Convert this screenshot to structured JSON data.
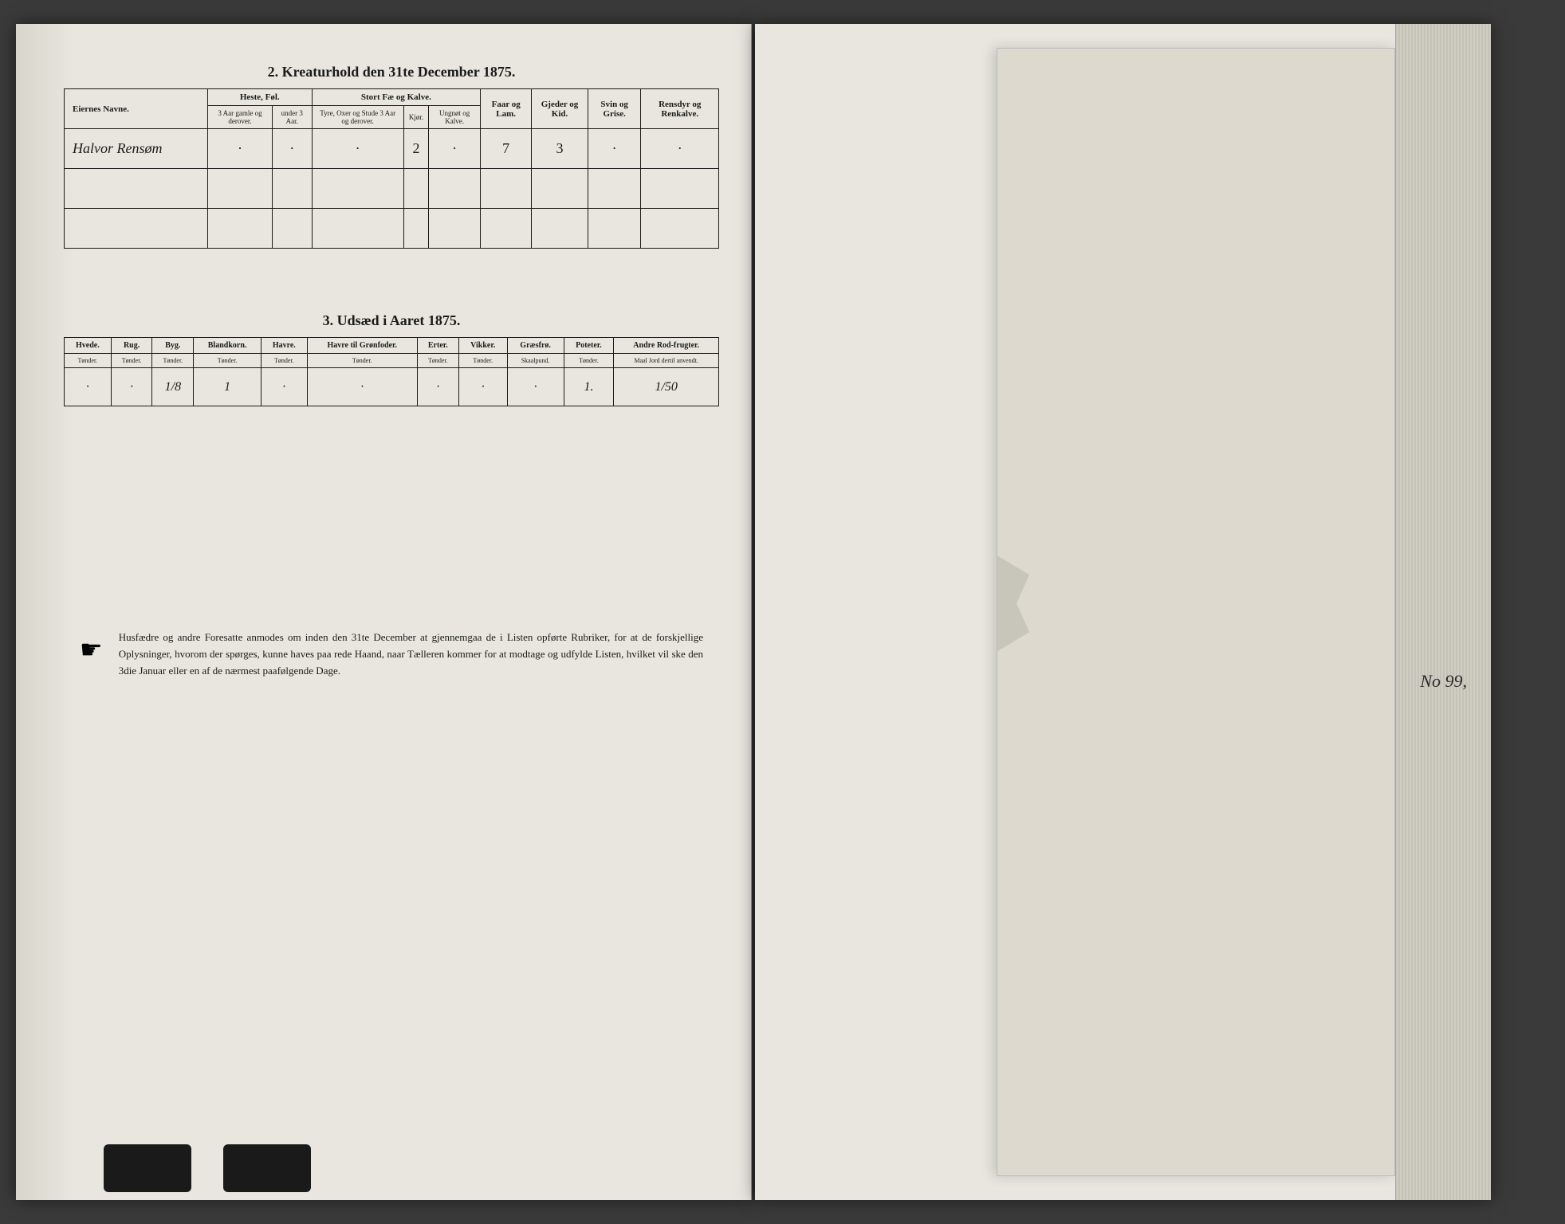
{
  "colors": {
    "page_bg": "#e8e6de",
    "ink": "#1a1a1a",
    "book_bg": "#3a3a3a",
    "body_bg": "#4a4a4a",
    "fold_bg": "#ddd9cf",
    "edge_stack": "#d0cdc2"
  },
  "section2": {
    "title": "2.  Kreaturhold den 31te December 1875.",
    "header_groups": {
      "eier": "Eiernes Navne.",
      "heste": "Heste, Føl.",
      "storfe": "Stort Fæ og Kalve.",
      "faar": "Faar og Lam.",
      "gjeder": "Gjeder og Kid.",
      "svin": "Svin og Grise.",
      "rensdyr": "Rensdyr og Renkalve."
    },
    "subheaders": {
      "heste_a": "3 Aar gamle og derover.",
      "heste_b": "under 3 Aar.",
      "storfe_a": "Tyre, Oxer og Stude 3 Aar og derover.",
      "storfe_b": "Kjør.",
      "storfe_c": "Ungnøt og Kalve."
    },
    "row": {
      "name": "Halvor Rensøm",
      "heste_a": "·",
      "heste_b": "·",
      "storfe_a": "·",
      "storfe_b": "2",
      "storfe_c": "·",
      "faar": "7",
      "gjeder": "3",
      "svin": "·",
      "rensdyr": "·"
    }
  },
  "section3": {
    "title": "3.  Udsæd i Aaret 1875.",
    "columns": [
      {
        "name": "Hvede.",
        "unit": "Tønder."
      },
      {
        "name": "Rug.",
        "unit": "Tønder."
      },
      {
        "name": "Byg.",
        "unit": "Tønder."
      },
      {
        "name": "Blandkorn.",
        "unit": "Tønder."
      },
      {
        "name": "Havre.",
        "unit": "Tønder."
      },
      {
        "name": "Havre til Grønfoder.",
        "unit": "Tønder."
      },
      {
        "name": "Erter.",
        "unit": "Tønder."
      },
      {
        "name": "Vikker.",
        "unit": "Tønder."
      },
      {
        "name": "Græsfrø.",
        "unit": "Skaalpund."
      },
      {
        "name": "Poteter.",
        "unit": "Tønder."
      },
      {
        "name": "Andre Rod-frugter.",
        "unit": "Maal Jord dertil anvendt."
      }
    ],
    "values": [
      "·",
      "·",
      "1/8",
      "1",
      "·",
      "·",
      "·",
      "·",
      "·",
      "1.",
      "1/50"
    ]
  },
  "footer": {
    "text": "Husfædre og andre Foresatte anmodes om inden den 31te December at gjennemgaa de i Listen opførte Rubriker, for at de forskjellige Oplysninger, hvorom der spørges, kunne haves paa rede Haand, naar Tælleren kommer for at modtage og udfylde Listen, hvilket vil ske den 3die Januar eller en af de nærmest paafølgende Dage."
  },
  "margin_note": "No 99,"
}
